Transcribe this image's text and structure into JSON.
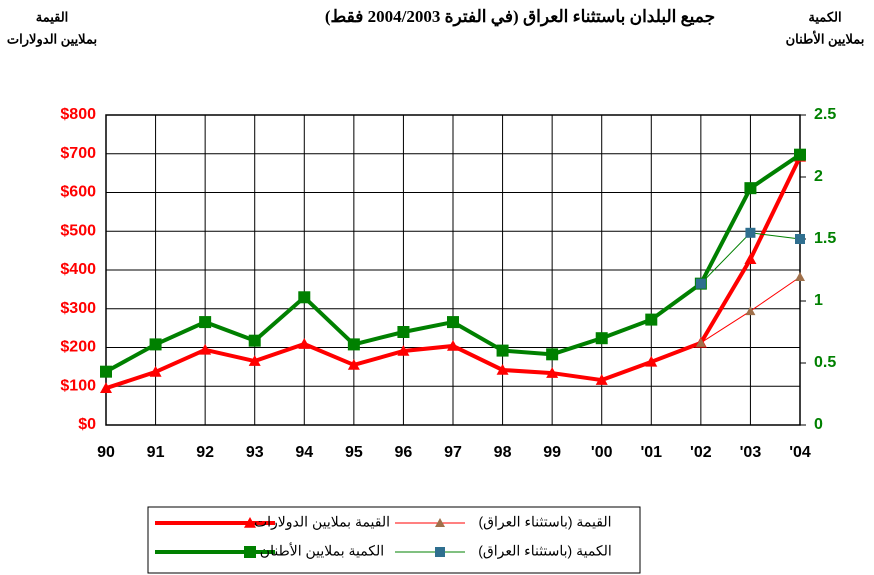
{
  "chart_data": {
    "type": "line",
    "title": "جميع البلدان باستثناء العراق (في الفترة 2004/2003 فقط)",
    "ylabel": [
      "القيمة",
      "بملايين الدولارات"
    ],
    "y2label": [
      "الكمية",
      "بملايين الأطنان"
    ],
    "categories": [
      "90",
      "91",
      "92",
      "93",
      "94",
      "95",
      "96",
      "97",
      "98",
      "99",
      "'00",
      "'01",
      "'02",
      "'03",
      "'04"
    ],
    "ylim": [
      0,
      800
    ],
    "yticks": [
      {
        "value": 0,
        "label": "$0"
      },
      {
        "value": 100,
        "label": "$100"
      },
      {
        "value": 200,
        "label": "$200"
      },
      {
        "value": 300,
        "label": "$300"
      },
      {
        "value": 400,
        "label": "$400"
      },
      {
        "value": 500,
        "label": "$500"
      },
      {
        "value": 600,
        "label": "$600"
      },
      {
        "value": 700,
        "label": "$700"
      },
      {
        "value": 800,
        "label": "$800"
      }
    ],
    "y2lim": [
      0,
      2.5
    ],
    "y2ticks": [
      0,
      0.5,
      1,
      1.5,
      2,
      2.5
    ],
    "ytick_color": "#ff0000",
    "y2tick_color": "#008000",
    "grid": true,
    "series": [
      {
        "name": "القيمة بملايين الدولارات",
        "color": "#ff0000",
        "marker": "triangle",
        "marker_color": "#ff0000",
        "linewidth": 4,
        "values": [
          95,
          137,
          194,
          165,
          209,
          155,
          191,
          204,
          142,
          134,
          116,
          163,
          212,
          428,
          692
        ]
      },
      {
        "name": "القيمة (باستثناء العراق)",
        "color": "#ff0000",
        "marker": "triangle",
        "marker_color": "#a0704a",
        "linewidth": 1,
        "values": [
          null,
          null,
          null,
          null,
          null,
          null,
          null,
          null,
          null,
          null,
          null,
          null,
          212,
          294,
          382
        ]
      },
      {
        "name": "الكمية بملايين الأطنان",
        "color": "#008000",
        "marker": "square",
        "marker_color": "#008000",
        "linewidth": 4,
        "axis": "y2",
        "values": [
          0.43,
          0.65,
          0.83,
          0.68,
          1.03,
          0.65,
          0.75,
          0.83,
          0.6,
          0.57,
          0.7,
          0.85,
          1.14,
          1.91,
          2.18
        ]
      },
      {
        "name": "الكمية (باستثناء العراق)",
        "color": "#008000",
        "marker": "square",
        "marker_color": "#2f6f8f",
        "linewidth": 1,
        "axis": "y2",
        "values": [
          null,
          null,
          null,
          null,
          null,
          null,
          null,
          null,
          null,
          null,
          null,
          null,
          1.14,
          1.55,
          1.5
        ]
      }
    ]
  }
}
